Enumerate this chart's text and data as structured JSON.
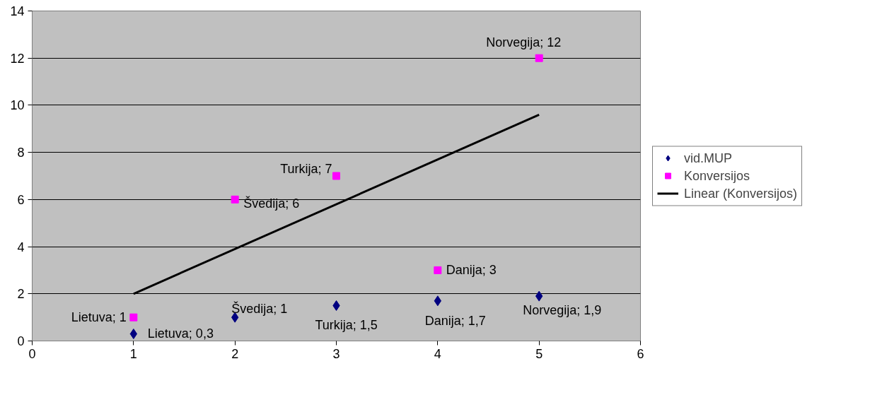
{
  "chart_data": {
    "type": "scatter",
    "x": [
      1,
      2,
      3,
      4,
      5
    ],
    "series": [
      {
        "name": "vid.MUP",
        "color": "#000080",
        "marker": "diamond",
        "values": [
          0.3,
          1,
          1.5,
          1.7,
          1.9
        ],
        "value_labels": [
          "Lietuva; 0,3",
          "Švedija; 1",
          "Turkija; 1,5",
          "Danija; 1,7",
          "Norvegija; 1,9"
        ]
      },
      {
        "name": "Konversijos",
        "color": "#ff00ff",
        "marker": "square",
        "values": [
          1,
          6,
          7,
          3,
          12
        ],
        "value_labels": [
          "Lietuva; 1",
          "Švedija; 6",
          "Turkija; 7",
          "Danija; 3",
          "Norvegija; 12"
        ]
      },
      {
        "name": "Linear (Konversijos)",
        "type": "line",
        "color": "#000000",
        "marker": "none",
        "line_style": "solid",
        "x": [
          1,
          5
        ],
        "values": [
          2.0,
          9.6
        ]
      }
    ],
    "xlim": [
      0,
      6
    ],
    "xticks": [
      0,
      1,
      2,
      3,
      4,
      5,
      6
    ],
    "ylim": [
      0,
      14
    ],
    "yticks": [
      0,
      2,
      4,
      6,
      8,
      10,
      12,
      14
    ],
    "grid": "y",
    "legend": "right"
  }
}
